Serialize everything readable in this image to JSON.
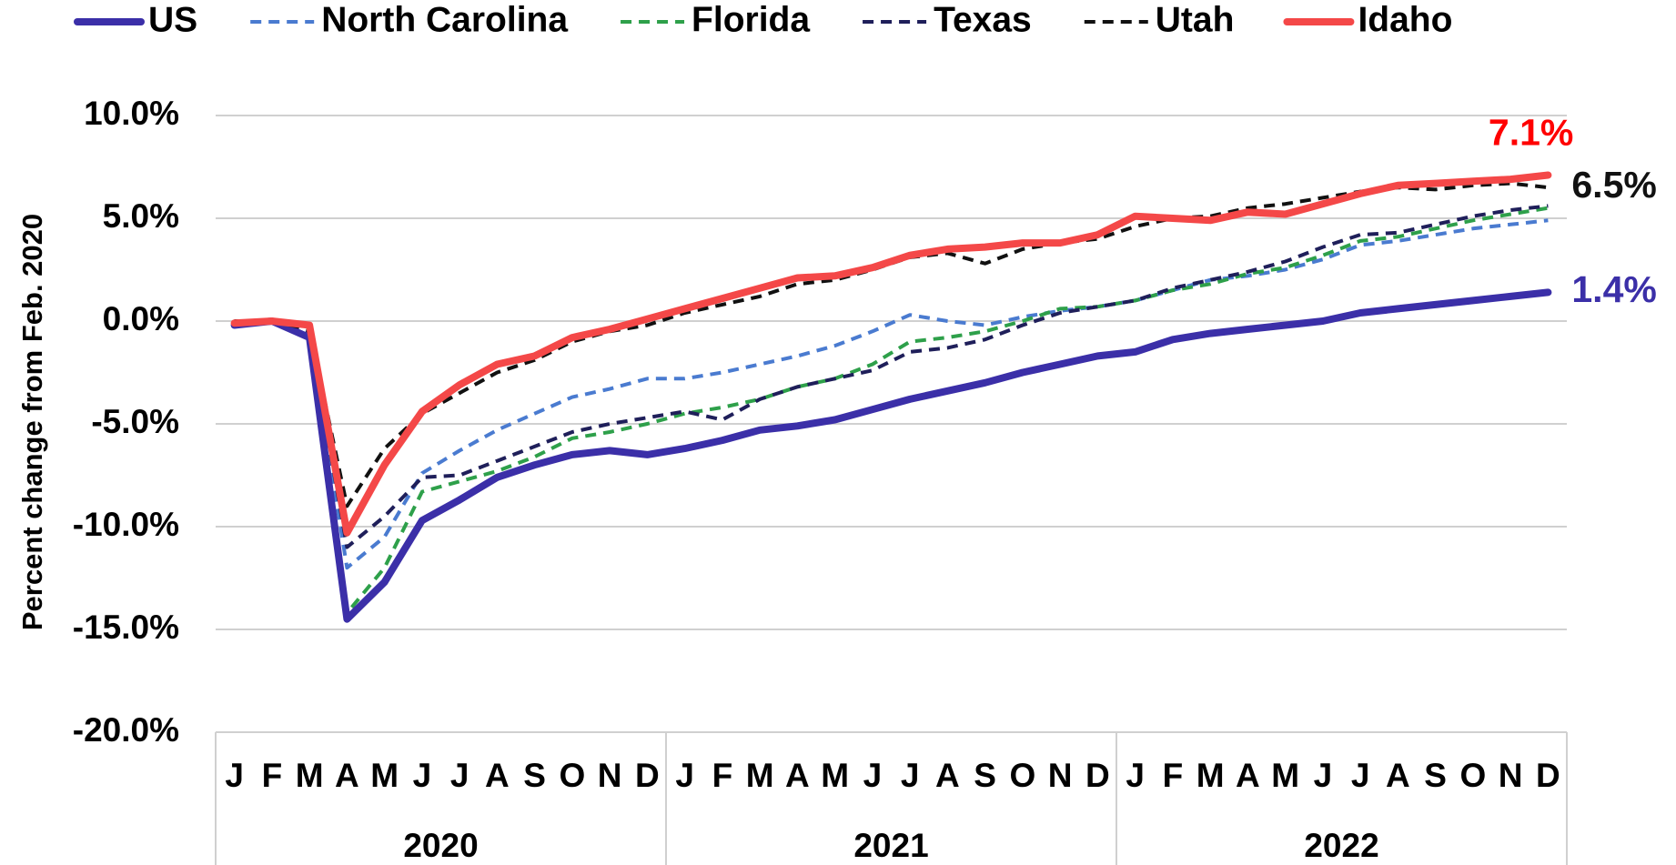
{
  "chart_data": {
    "type": "line",
    "y_axis_label": "Percent change from Feb. 2020",
    "categories": [
      "J",
      "F",
      "M",
      "A",
      "M",
      "J",
      "J",
      "A",
      "S",
      "O",
      "N",
      "D",
      "J",
      "F",
      "M",
      "A",
      "M",
      "J",
      "J",
      "A",
      "S",
      "O",
      "N",
      "D",
      "J",
      "F",
      "M",
      "A",
      "M",
      "J",
      "J",
      "A",
      "S",
      "O",
      "N",
      "D"
    ],
    "year_groups": [
      "2020",
      "2021",
      "2022"
    ],
    "ylim": [
      -20,
      10
    ],
    "yticks": [
      {
        "value": -20,
        "label": "-20.0%"
      },
      {
        "value": -15,
        "label": "-15.0%"
      },
      {
        "value": -10,
        "label": "-10.0%"
      },
      {
        "value": -5,
        "label": "-5.0%"
      },
      {
        "value": 0,
        "label": "0.0%"
      },
      {
        "value": 5,
        "label": "5.0%"
      },
      {
        "value": 10,
        "label": "10.0%"
      }
    ],
    "grid": true,
    "legend": "top",
    "series": [
      {
        "name": "US",
        "color": "#3b2fa8",
        "dashed": false,
        "end_label": "1.4%",
        "end_label_color": "#3b2fa8",
        "values": [
          -0.2,
          0,
          -0.8,
          -14.5,
          -12.7,
          -9.7,
          -8.7,
          -7.6,
          -7.0,
          -6.5,
          -6.3,
          -6.5,
          -6.2,
          -5.8,
          -5.3,
          -5.1,
          -4.8,
          -4.3,
          -3.8,
          -3.4,
          -3.0,
          -2.5,
          -2.1,
          -1.7,
          -1.5,
          -0.9,
          -0.6,
          -0.4,
          -0.2,
          0.0,
          0.4,
          0.6,
          0.8,
          1.0,
          1.2,
          1.4
        ]
      },
      {
        "name": "North Carolina",
        "color": "#4a7bd0",
        "dashed": true,
        "values": [
          0,
          0,
          -0.6,
          -12.0,
          -10.5,
          -7.4,
          -6.3,
          -5.3,
          -4.5,
          -3.7,
          -3.3,
          -2.8,
          -2.8,
          -2.5,
          -2.1,
          -1.7,
          -1.2,
          -0.5,
          0.3,
          0.0,
          -0.2,
          0.2,
          0.5,
          0.7,
          1.0,
          1.5,
          2.0,
          2.2,
          2.5,
          3.0,
          3.7,
          3.9,
          4.2,
          4.5,
          4.7,
          4.9
        ]
      },
      {
        "name": "Florida",
        "color": "#2ea04a",
        "dashed": true,
        "values": [
          0,
          0,
          -0.8,
          -14.2,
          -12.0,
          -8.3,
          -7.8,
          -7.3,
          -6.6,
          -5.7,
          -5.4,
          -5.0,
          -4.5,
          -4.2,
          -3.8,
          -3.2,
          -2.8,
          -2.1,
          -1.0,
          -0.8,
          -0.5,
          0.0,
          0.6,
          0.7,
          1.0,
          1.5,
          1.8,
          2.3,
          2.6,
          3.2,
          3.9,
          4.1,
          4.5,
          4.9,
          5.2,
          5.5
        ]
      },
      {
        "name": "Texas",
        "color": "#1f1f5a",
        "dashed": true,
        "values": [
          0,
          0,
          -0.6,
          -11.0,
          -9.5,
          -7.6,
          -7.5,
          -6.8,
          -6.1,
          -5.4,
          -5.0,
          -4.7,
          -4.4,
          -4.8,
          -3.8,
          -3.2,
          -2.8,
          -2.4,
          -1.5,
          -1.3,
          -0.9,
          -0.2,
          0.4,
          0.7,
          1.0,
          1.6,
          2.0,
          2.4,
          2.9,
          3.6,
          4.2,
          4.3,
          4.7,
          5.1,
          5.4,
          5.6
        ]
      },
      {
        "name": "Utah",
        "color": "#111111",
        "dashed": true,
        "end_label": "6.5%",
        "end_label_color": "#111111",
        "values": [
          0,
          0,
          -0.4,
          -9.0,
          -6.2,
          -4.5,
          -3.5,
          -2.5,
          -1.9,
          -1.0,
          -0.5,
          -0.2,
          0.4,
          0.8,
          1.2,
          1.8,
          2.0,
          2.5,
          3.1,
          3.3,
          2.8,
          3.5,
          3.8,
          4.0,
          4.6,
          5.0,
          5.1,
          5.5,
          5.7,
          6.0,
          6.3,
          6.5,
          6.4,
          6.6,
          6.7,
          6.5
        ]
      },
      {
        "name": "Idaho",
        "color": "#f44848",
        "dashed": false,
        "end_label": "7.1%",
        "end_label_color": "#ff0000",
        "values": [
          -0.1,
          0,
          -0.2,
          -10.3,
          -7.0,
          -4.4,
          -3.1,
          -2.1,
          -1.7,
          -0.8,
          -0.4,
          0.1,
          0.6,
          1.1,
          1.6,
          2.1,
          2.2,
          2.6,
          3.2,
          3.5,
          3.6,
          3.8,
          3.8,
          4.2,
          5.1,
          5.0,
          4.9,
          5.3,
          5.2,
          5.7,
          6.2,
          6.6,
          6.7,
          6.8,
          6.9,
          7.1
        ]
      }
    ]
  }
}
